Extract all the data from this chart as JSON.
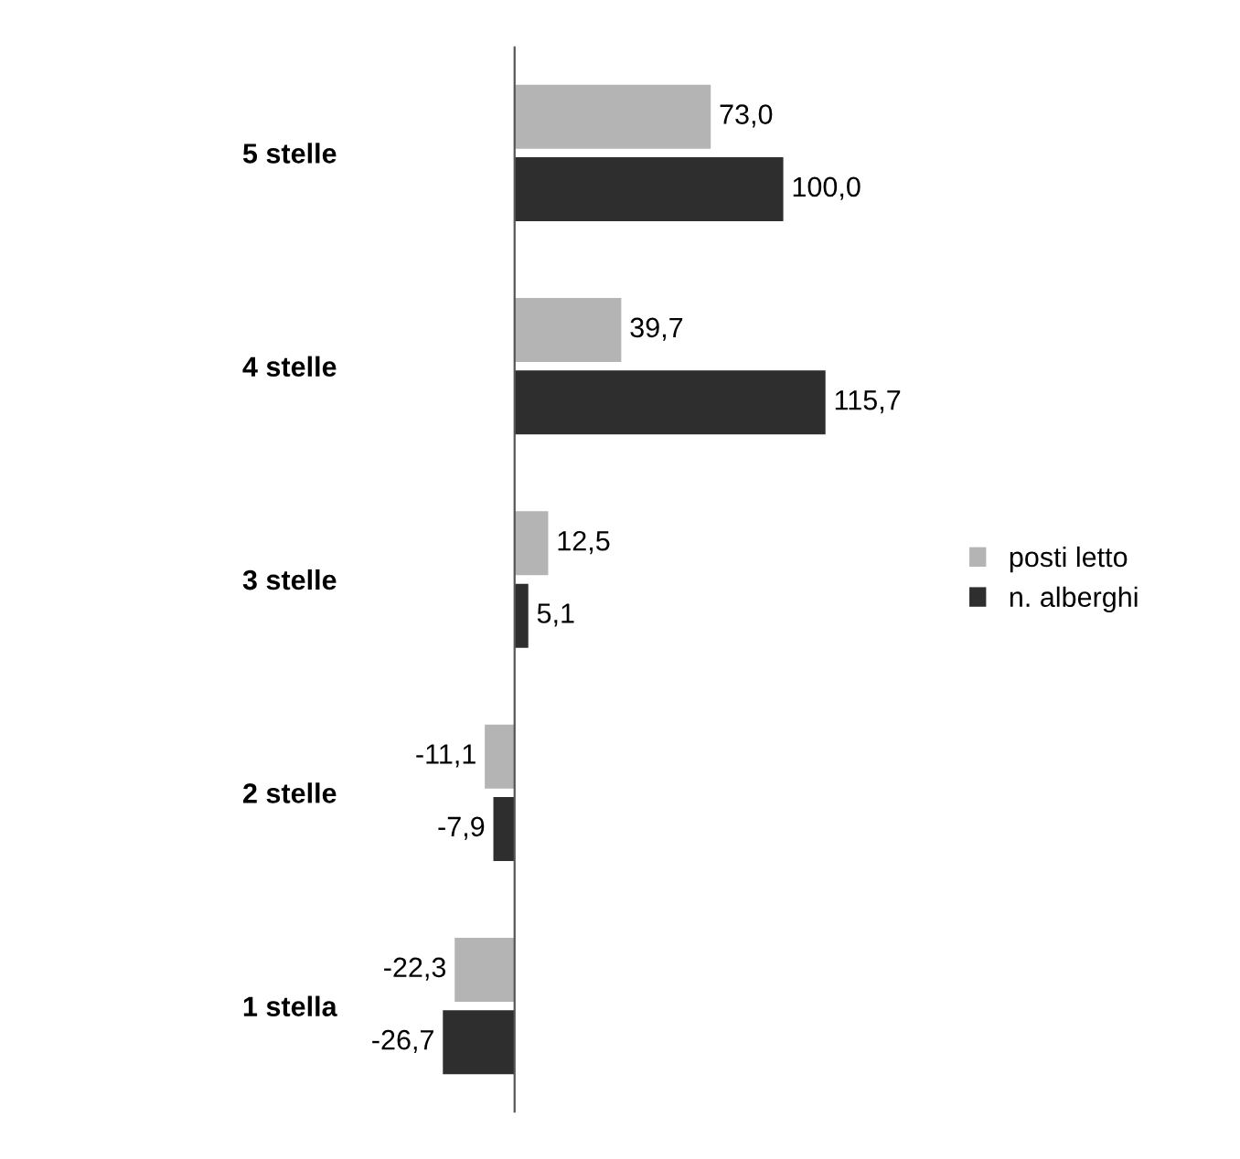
{
  "chart_data": {
    "type": "bar",
    "orientation": "horizontal",
    "categories": [
      "5 stelle",
      "4 stelle",
      "3 stelle",
      "2 stelle",
      "1 stella"
    ],
    "series": [
      {
        "name": "posti letto",
        "color": "#b4b4b4",
        "values": [
          73.0,
          39.7,
          12.5,
          -11.1,
          -22.3
        ],
        "value_labels": [
          "73,0",
          "39,7",
          "12,5",
          "-11,1",
          "-22,3"
        ]
      },
      {
        "name": "n. alberghi",
        "color": "#2e2e2e",
        "values": [
          100.0,
          115.7,
          5.1,
          -7.9,
          -26.7
        ],
        "value_labels": [
          "100,0",
          "115,7",
          "5,1",
          "-7,9",
          "-26,7"
        ]
      }
    ],
    "legend": "right",
    "grid": false,
    "tick_labels": "y"
  }
}
